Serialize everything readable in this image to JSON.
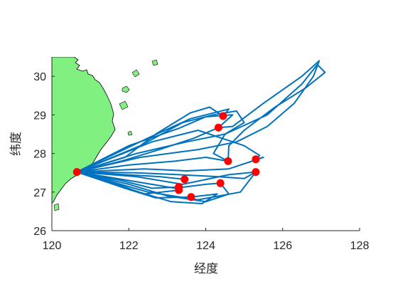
{
  "chart_data": {
    "type": "line",
    "title": "",
    "xlabel": "经度",
    "ylabel": "纬度",
    "xlim": [
      120,
      128
    ],
    "ylim": [
      26,
      30.5
    ],
    "xticks": [
      120,
      122,
      124,
      126,
      128
    ],
    "yticks": [
      26,
      27,
      28,
      29,
      30
    ],
    "grid": false,
    "land_color": "#80f080",
    "track_color": "#0072bd",
    "point_color": "#ff0000",
    "origin": {
      "x": 120.65,
      "y": 27.52
    },
    "stations": [
      {
        "x": 124.45,
        "y": 28.97
      },
      {
        "x": 124.33,
        "y": 28.67
      },
      {
        "x": 124.58,
        "y": 27.8
      },
      {
        "x": 125.3,
        "y": 27.85
      },
      {
        "x": 125.3,
        "y": 27.52
      },
      {
        "x": 123.45,
        "y": 27.33
      },
      {
        "x": 124.38,
        "y": 27.23
      },
      {
        "x": 123.3,
        "y": 27.13
      },
      {
        "x": 123.3,
        "y": 27.05
      },
      {
        "x": 123.62,
        "y": 26.87
      }
    ],
    "tracks": [
      [
        [
          120.65,
          27.52
        ],
        [
          121.9,
          27.9
        ],
        [
          122.7,
          28.5
        ],
        [
          123.6,
          29.05
        ],
        [
          124.1,
          29.2
        ],
        [
          124.45,
          28.97
        ]
      ],
      [
        [
          120.65,
          27.52
        ],
        [
          121.8,
          27.8
        ],
        [
          122.8,
          28.1
        ],
        [
          123.7,
          28.4
        ],
        [
          124.33,
          28.67
        ]
      ],
      [
        [
          120.65,
          27.52
        ],
        [
          122.0,
          27.7
        ],
        [
          123.2,
          27.8
        ],
        [
          124.0,
          27.9
        ],
        [
          124.58,
          27.8
        ]
      ],
      [
        [
          120.65,
          27.52
        ],
        [
          122.2,
          27.4
        ],
        [
          123.4,
          27.2
        ],
        [
          124.6,
          27.45
        ],
        [
          125.3,
          27.52
        ]
      ],
      [
        [
          120.65,
          27.52
        ],
        [
          121.9,
          27.45
        ],
        [
          122.8,
          27.4
        ],
        [
          123.45,
          27.33
        ]
      ],
      [
        [
          120.65,
          27.52
        ],
        [
          122.0,
          27.3
        ],
        [
          123.2,
          27.1
        ],
        [
          124.0,
          27.2
        ],
        [
          124.38,
          27.23
        ]
      ],
      [
        [
          120.65,
          27.52
        ],
        [
          121.8,
          27.3
        ],
        [
          122.6,
          27.1
        ],
        [
          123.3,
          27.13
        ]
      ],
      [
        [
          120.65,
          27.52
        ],
        [
          121.7,
          27.2
        ],
        [
          122.4,
          26.95
        ],
        [
          123.3,
          27.05
        ]
      ],
      [
        [
          120.65,
          27.52
        ],
        [
          121.9,
          27.1
        ],
        [
          122.7,
          26.85
        ],
        [
          123.62,
          26.87
        ]
      ],
      [
        [
          120.65,
          27.52
        ],
        [
          122.3,
          28.2
        ],
        [
          123.4,
          28.8
        ],
        [
          124.2,
          29.0
        ],
        [
          124.8,
          29.1
        ],
        [
          125.0,
          28.8
        ],
        [
          124.5,
          28.5
        ],
        [
          124.2,
          28.0
        ],
        [
          124.58,
          27.8
        ]
      ],
      [
        [
          120.65,
          27.52
        ],
        [
          122.5,
          27.0
        ],
        [
          123.8,
          26.8
        ],
        [
          124.9,
          27.0
        ],
        [
          125.3,
          27.52
        ]
      ],
      [
        [
          120.65,
          27.52
        ],
        [
          122.6,
          28.3
        ],
        [
          123.8,
          28.6
        ],
        [
          125.0,
          28.2
        ],
        [
          125.4,
          27.95
        ],
        [
          125.3,
          27.85
        ]
      ],
      [
        [
          120.65,
          27.52
        ],
        [
          122.4,
          27.6
        ],
        [
          123.5,
          27.55
        ],
        [
          124.6,
          27.6
        ],
        [
          125.5,
          27.9
        ],
        [
          125.3,
          27.85
        ]
      ],
      [
        [
          120.65,
          27.52
        ],
        [
          122.2,
          28.0
        ],
        [
          123.5,
          28.3
        ],
        [
          124.5,
          28.5
        ],
        [
          125.6,
          29.0
        ],
        [
          126.5,
          29.8
        ],
        [
          126.9,
          30.3
        ],
        [
          127.1,
          30.1
        ],
        [
          126.6,
          29.7
        ],
        [
          125.8,
          29.2
        ],
        [
          125.0,
          28.6
        ],
        [
          124.6,
          28.2
        ],
        [
          124.58,
          27.8
        ]
      ],
      [
        [
          120.65,
          27.52
        ],
        [
          122.3,
          27.9
        ],
        [
          123.8,
          28.1
        ],
        [
          124.8,
          28.3
        ],
        [
          125.6,
          28.7
        ],
        [
          126.3,
          29.3
        ],
        [
          126.8,
          30.0
        ],
        [
          126.95,
          30.4
        ],
        [
          126.5,
          30.0
        ],
        [
          125.5,
          29.3
        ],
        [
          124.7,
          28.7
        ],
        [
          124.33,
          28.67
        ]
      ],
      [
        [
          120.65,
          27.52
        ],
        [
          122.0,
          27.2
        ],
        [
          123.0,
          26.9
        ],
        [
          124.0,
          26.75
        ],
        [
          124.6,
          26.95
        ],
        [
          124.38,
          27.23
        ]
      ],
      [
        [
          120.65,
          27.52
        ],
        [
          122.1,
          27.05
        ],
        [
          123.1,
          26.75
        ],
        [
          123.9,
          26.7
        ],
        [
          124.3,
          26.95
        ],
        [
          123.62,
          26.87
        ]
      ],
      [
        [
          120.65,
          27.52
        ],
        [
          122.5,
          28.4
        ],
        [
          123.6,
          28.9
        ],
        [
          124.6,
          29.15
        ],
        [
          124.45,
          28.97
        ]
      ],
      [
        [
          120.65,
          27.52
        ],
        [
          122.2,
          27.5
        ],
        [
          123.3,
          27.45
        ],
        [
          124.3,
          27.4
        ],
        [
          125.0,
          27.35
        ],
        [
          125.3,
          27.52
        ]
      ],
      [
        [
          120.65,
          27.52
        ],
        [
          122.0,
          28.2
        ],
        [
          123.3,
          28.65
        ],
        [
          124.0,
          28.95
        ],
        [
          124.7,
          29.0
        ],
        [
          124.33,
          28.67
        ]
      ]
    ]
  }
}
